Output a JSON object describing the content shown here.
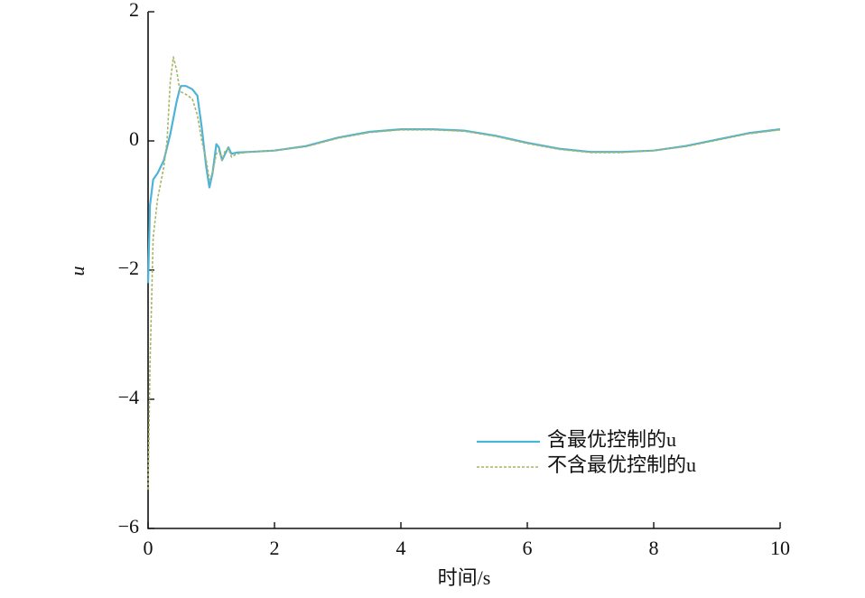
{
  "chart_data": {
    "type": "line",
    "xlabel": "时间/s",
    "ylabel": "u",
    "xlim": [
      0,
      10
    ],
    "ylim": [
      -6,
      2
    ],
    "xticks": [
      0,
      2,
      4,
      6,
      8,
      10
    ],
    "yticks": [
      {
        "value": -6,
        "label": "−6"
      },
      {
        "value": -4,
        "label": "−4"
      },
      {
        "value": -2,
        "label": "−2"
      },
      0,
      2
    ],
    "legend": "lower right",
    "x": [
      0,
      0.03,
      0.08,
      0.15,
      0.25,
      0.3,
      0.35,
      0.4,
      0.45,
      0.5,
      0.52,
      0.6,
      0.7,
      0.78,
      0.85,
      0.92,
      0.97,
      1.02,
      1.08,
      1.12,
      1.17,
      1.22,
      1.27,
      1.32,
      1.4,
      1.6,
      2,
      2.5,
      3,
      3.5,
      4,
      4.5,
      5,
      5.5,
      6,
      6.5,
      7,
      7.5,
      8,
      8.5,
      9,
      9.5,
      10
    ],
    "series": [
      {
        "name": "含最优控制的u",
        "color": "#4eb3d8",
        "style": "solid",
        "values": [
          -2.2,
          -1.0,
          -0.6,
          -0.5,
          -0.3,
          -0.1,
          0.1,
          0.35,
          0.6,
          0.8,
          0.85,
          0.85,
          0.8,
          0.7,
          0.2,
          -0.4,
          -0.72,
          -0.5,
          -0.05,
          -0.1,
          -0.3,
          -0.2,
          -0.1,
          -0.2,
          -0.18,
          -0.17,
          -0.15,
          -0.08,
          0.05,
          0.14,
          0.18,
          0.18,
          0.16,
          0.08,
          -0.03,
          -0.12,
          -0.17,
          -0.17,
          -0.15,
          -0.08,
          0.02,
          0.12,
          0.18
        ]
      },
      {
        "name": "不含最优控制的u",
        "color": "#a9b466",
        "style": "dotted",
        "values": [
          -5.4,
          -3.5,
          -1.5,
          -0.9,
          -0.4,
          0.0,
          0.9,
          1.3,
          1.1,
          0.8,
          0.76,
          0.72,
          0.65,
          0.4,
          0.0,
          -0.3,
          -0.6,
          -0.5,
          -0.2,
          -0.15,
          -0.3,
          -0.15,
          -0.12,
          -0.25,
          -0.2,
          -0.17,
          -0.15,
          -0.09,
          0.04,
          0.13,
          0.17,
          0.17,
          0.15,
          0.07,
          -0.04,
          -0.13,
          -0.18,
          -0.18,
          -0.15,
          -0.09,
          0.01,
          0.11,
          0.17
        ]
      }
    ]
  }
}
